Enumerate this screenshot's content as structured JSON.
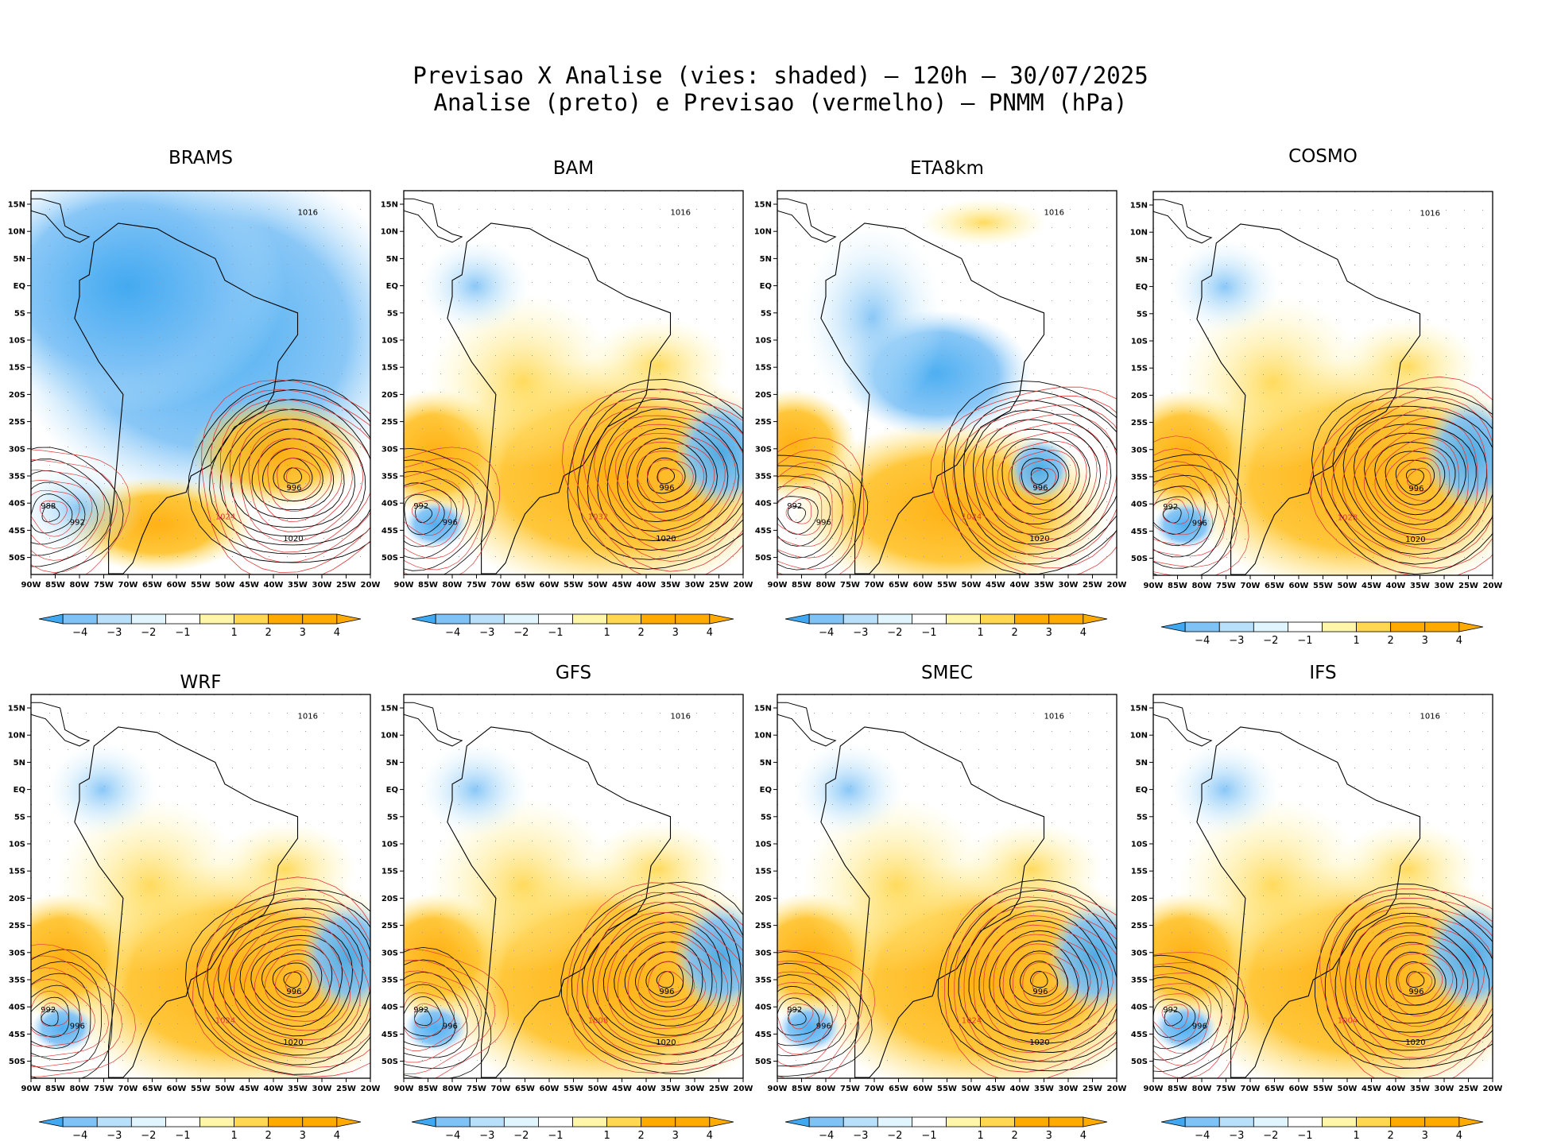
{
  "figure": {
    "title_line1": "Previsao X Analise (vies: shaded) — 120h — 30/07/2025",
    "title_line2": "Analise (preto) e Previsao (vermelho) — PNMM (hPa)"
  },
  "lat_labels": [
    "15N",
    "10N",
    "5N",
    "EQ",
    "5S",
    "10S",
    "15S",
    "20S",
    "25S",
    "30S",
    "35S",
    "40S",
    "45S",
    "50S"
  ],
  "lon_labels": [
    "90W",
    "85W",
    "80W",
    "75W",
    "70W",
    "65W",
    "60W",
    "55W",
    "50W",
    "45W",
    "40W",
    "35W",
    "30W",
    "25W",
    "20W"
  ],
  "colorbar": {
    "labels": [
      "−4",
      "−3",
      "−2",
      "−1",
      "1",
      "2",
      "3",
      "4"
    ],
    "colors": [
      "#3fa8f0",
      "#7fc2f6",
      "#b9e0fb",
      "#e0f5fd",
      "#ffffff",
      "#fff6aa",
      "#ffd750",
      "#ffaa00",
      "#ffaa00"
    ]
  },
  "legend": {
    "analysis_color": "#000000",
    "forecast_color": "#e23a3a"
  },
  "panels": [
    {
      "model": "BRAMS",
      "low_center": "996",
      "highs": [
        "1016",
        "1020",
        "1024"
      ],
      "lows": [
        "988",
        "992"
      ],
      "bias": "negative"
    },
    {
      "model": "BAM",
      "low_center": "996",
      "highs": [
        "1016",
        "1020",
        "1032"
      ],
      "lows": [
        "992",
        "996"
      ],
      "bias": "positive"
    },
    {
      "model": "ETA8km",
      "low_center": "996",
      "highs": [
        "1016",
        "1020",
        "1024"
      ],
      "lows": [
        "992",
        "996"
      ],
      "bias": "mixed"
    },
    {
      "model": "COSMO",
      "low_center": "996",
      "highs": [
        "1016",
        "1020",
        "1028"
      ],
      "lows": [
        "992",
        "996"
      ],
      "bias": "positive"
    },
    {
      "model": "WRF",
      "low_center": "996",
      "highs": [
        "1016",
        "1020",
        "1024"
      ],
      "lows": [
        "992",
        "996"
      ],
      "bias": "positive"
    },
    {
      "model": "GFS",
      "low_center": "996",
      "highs": [
        "1016",
        "1020",
        "1008"
      ],
      "lows": [
        "992",
        "996"
      ],
      "bias": "positive"
    },
    {
      "model": "SMEC",
      "low_center": "996",
      "highs": [
        "1016",
        "1020",
        "1024"
      ],
      "lows": [
        "992",
        "996"
      ],
      "bias": "positive"
    },
    {
      "model": "IFS",
      "low_center": "996",
      "highs": [
        "1016",
        "1020",
        "1004"
      ],
      "lows": [
        "992",
        "996"
      ],
      "bias": "positive"
    }
  ]
}
